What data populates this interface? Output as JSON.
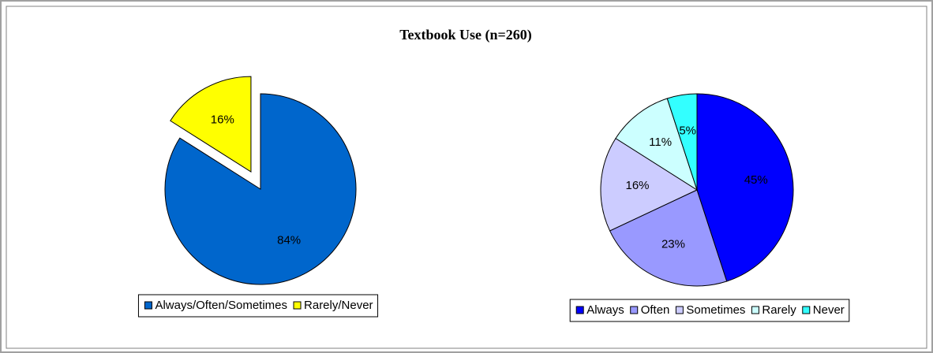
{
  "title": "Textbook Use (n=260)",
  "chart_data": [
    {
      "type": "pie",
      "categories": [
        "Always/Often/Sometimes",
        "Rarely/Never"
      ],
      "values": [
        84,
        16
      ],
      "value_labels": [
        "84%",
        "16%"
      ],
      "colors": [
        "#0066cc",
        "#ffff00"
      ],
      "exploded": [
        1
      ]
    },
    {
      "type": "pie",
      "categories": [
        "Always",
        "Often",
        "Sometimes",
        "Rarely",
        "Never"
      ],
      "values": [
        45,
        23,
        16,
        11,
        5
      ],
      "value_labels": [
        "45%",
        "23%",
        "16%",
        "11%",
        "5%"
      ],
      "colors": [
        "#0000ff",
        "#9999ff",
        "#ccccff",
        "#ccffff",
        "#33ffff"
      ]
    }
  ]
}
